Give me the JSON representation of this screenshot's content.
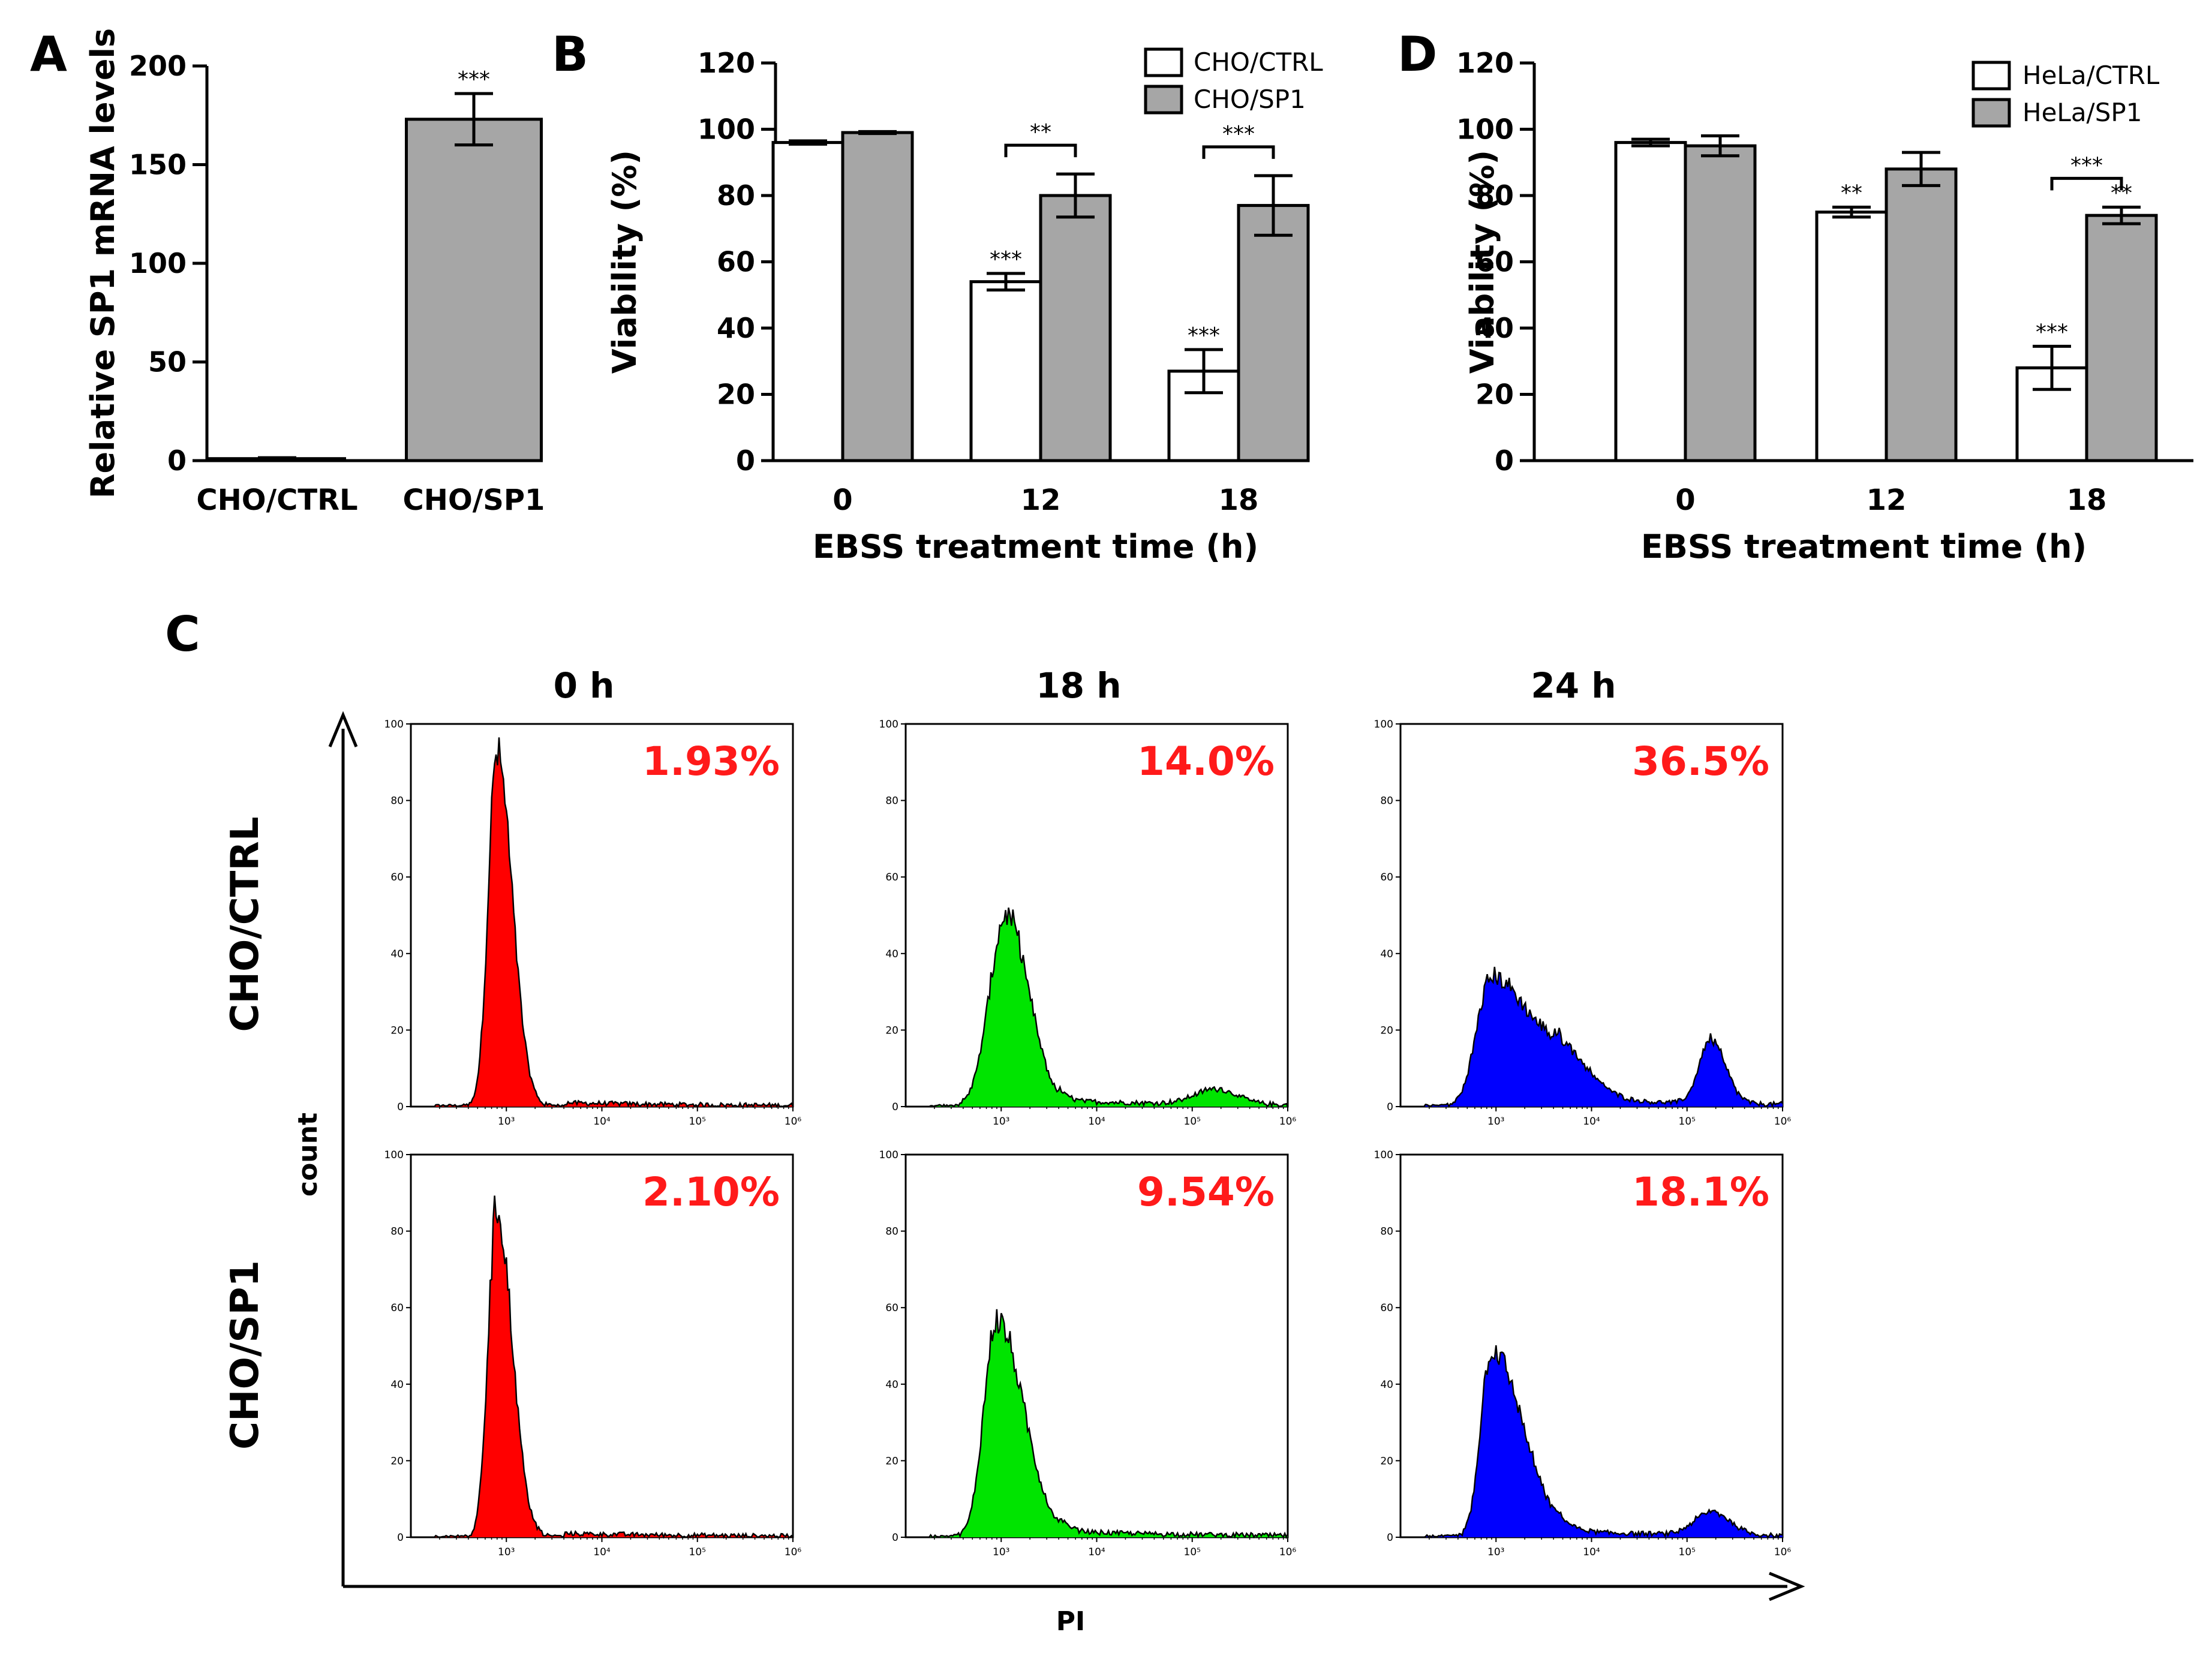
{
  "chart_data": [
    {
      "panel": "A",
      "type": "bar",
      "ylabel": "Relative SP1 mRNA levels",
      "ylim": [
        0,
        200
      ],
      "yticks": [
        0,
        50,
        100,
        150,
        200
      ],
      "categories": [
        "CHO/CTRL",
        "CHO/SP1"
      ],
      "values": [
        1,
        173
      ],
      "errors": [
        0.5,
        13
      ],
      "colors": [
        "#ffffff",
        "#a6a6a6"
      ],
      "significance": [
        "",
        "***"
      ]
    },
    {
      "panel": "B",
      "type": "bar",
      "xlabel": "EBSS treatment time (h)",
      "ylabel": "Viability (%)",
      "ylim": [
        0,
        120
      ],
      "yticks": [
        0,
        20,
        40,
        60,
        80,
        100,
        120
      ],
      "categories": [
        "0",
        "12",
        "18"
      ],
      "series": [
        {
          "name": "CHO/CTRL",
          "color": "#ffffff",
          "values": [
            96,
            54,
            27
          ],
          "errors": [
            0.5,
            2.5,
            6.5
          ],
          "marks": [
            "",
            "***",
            "***"
          ]
        },
        {
          "name": "CHO/SP1",
          "color": "#a6a6a6",
          "values": [
            99,
            80,
            77
          ],
          "errors": [
            0.3,
            6.5,
            9
          ],
          "marks": [
            "",
            "",
            ""
          ]
        }
      ],
      "brackets": [
        {
          "category": 1,
          "label": "**"
        },
        {
          "category": 2,
          "label": "***"
        }
      ],
      "legend": "top-right"
    },
    {
      "panel": "D",
      "type": "bar",
      "xlabel": "EBSS treatment time (h)",
      "ylabel": "Viability (%)",
      "ylim": [
        0,
        120
      ],
      "yticks": [
        0,
        20,
        40,
        60,
        80,
        100,
        120
      ],
      "categories": [
        "0",
        "12",
        "18"
      ],
      "series": [
        {
          "name": "HeLa/CTRL",
          "color": "#ffffff",
          "values": [
            96,
            75,
            28
          ],
          "errors": [
            1,
            1.5,
            6.5
          ],
          "marks": [
            "",
            "**",
            "***"
          ]
        },
        {
          "name": "HeLa/SP1",
          "color": "#a6a6a6",
          "values": [
            95,
            88,
            74
          ],
          "errors": [
            3,
            5,
            2.5
          ],
          "marks": [
            "",
            "",
            "**"
          ]
        }
      ],
      "brackets": [
        {
          "category": 2,
          "label": "***"
        }
      ],
      "legend": "top-right"
    },
    {
      "panel": "C",
      "type": "area",
      "xlabel": "PI",
      "ylabel": "count",
      "xscale": "log",
      "xlim": [
        100,
        1000000
      ],
      "xticks": [
        "10³",
        "10⁴",
        "10⁵",
        "10⁶"
      ],
      "ylim": [
        0,
        100
      ],
      "yticks": [
        0,
        20,
        40,
        60,
        80,
        100
      ],
      "columns": [
        "0 h",
        "18 h",
        "24 h"
      ],
      "rows": [
        "CHO/CTRL",
        "CHO/SP1"
      ],
      "column_colors": [
        "#ff0000",
        "#00e400",
        "#0000ff"
      ],
      "histograms": [
        {
          "row": "CHO/CTRL",
          "column": "0 h",
          "percent": "1.93%",
          "peaks": [
            {
              "log10x": 2.9,
              "height": 92,
              "sl": 0.09,
              "sr": 0.16
            }
          ],
          "tail": 1
        },
        {
          "row": "CHO/CTRL",
          "column": "18 h",
          "percent": "14.0%",
          "peaks": [
            {
              "log10x": 3.05,
              "height": 50,
              "sl": 0.17,
              "sr": 0.24
            },
            {
              "log10x": 5.25,
              "height": 4,
              "sl": 0.22,
              "sr": 0.22
            }
          ],
          "tail": 1.5
        },
        {
          "row": "CHO/CTRL",
          "column": "24 h",
          "percent": "36.5%",
          "peaks": [
            {
              "log10x": 2.95,
              "height": 34,
              "sl": 0.15,
              "sr": 0.4
            },
            {
              "log10x": 3.7,
              "height": 10,
              "sl": 0.25,
              "sr": 0.3
            },
            {
              "log10x": 5.25,
              "height": 17,
              "sl": 0.12,
              "sr": 0.15
            }
          ],
          "tail": 2
        },
        {
          "row": "CHO/SP1",
          "column": "0 h",
          "percent": "2.10%",
          "peaks": [
            {
              "log10x": 2.9,
              "height": 86,
              "sl": 0.09,
              "sr": 0.16
            }
          ],
          "tail": 1
        },
        {
          "row": "CHO/SP1",
          "column": "18 h",
          "percent": "9.54%",
          "peaks": [
            {
              "log10x": 2.95,
              "height": 57,
              "sl": 0.13,
              "sr": 0.28
            }
          ],
          "tail": 1.5
        },
        {
          "row": "CHO/SP1",
          "column": "24 h",
          "percent": "18.1%",
          "peaks": [
            {
              "log10x": 2.95,
              "height": 49,
              "sl": 0.11,
              "sr": 0.33
            },
            {
              "log10x": 5.25,
              "height": 6,
              "sl": 0.17,
              "sr": 0.2
            }
          ],
          "tail": 1.5
        }
      ]
    }
  ],
  "panel_labels": [
    "A",
    "B",
    "C",
    "D"
  ]
}
